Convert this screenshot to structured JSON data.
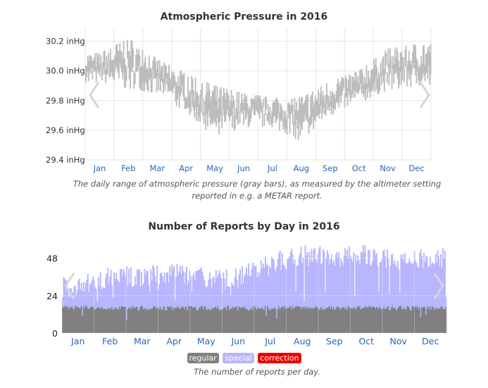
{
  "chart_data": [
    {
      "type": "bar",
      "title": "Atmospheric Pressure in 2016",
      "caption": "The daily range of atmospheric pressure (gray bars), as measured by the altimeter setting reported in e.g. a METAR report.",
      "y_unit": "inHg",
      "ylim": [
        29.4,
        30.25
      ],
      "yticks": [
        29.4,
        29.6,
        29.8,
        30.0,
        30.2
      ],
      "ytick_labels": [
        "29.4 inHg",
        "29.6 inHg",
        "29.8 inHg",
        "30.0 inHg",
        "30.2 inHg"
      ],
      "months": [
        "Jan",
        "Feb",
        "Mar",
        "Apr",
        "May",
        "Jun",
        "Jul",
        "Aug",
        "Sep",
        "Oct",
        "Nov",
        "Dec"
      ],
      "grid": true,
      "bar_color": "#bdbdbd",
      "monthly_range": [
        {
          "month": "Jan",
          "low": 29.92,
          "high": 30.12
        },
        {
          "month": "Feb",
          "low": 29.88,
          "high": 30.22
        },
        {
          "month": "Mar",
          "low": 29.85,
          "high": 30.08
        },
        {
          "month": "Apr",
          "low": 29.72,
          "high": 29.98
        },
        {
          "month": "May",
          "low": 29.55,
          "high": 29.9
        },
        {
          "month": "Jun",
          "low": 29.62,
          "high": 29.85
        },
        {
          "month": "Jul",
          "low": 29.62,
          "high": 29.82
        },
        {
          "month": "Aug",
          "low": 29.52,
          "high": 29.82
        },
        {
          "month": "Sep",
          "low": 29.7,
          "high": 29.93
        },
        {
          "month": "Oct",
          "low": 29.78,
          "high": 30.0
        },
        {
          "month": "Nov",
          "low": 29.87,
          "high": 30.15
        },
        {
          "month": "Dec",
          "low": 29.9,
          "high": 30.18
        }
      ]
    },
    {
      "type": "bar",
      "title": "Number of Reports by Day in 2016",
      "caption": "The number of reports per day.",
      "ylim": [
        0,
        60
      ],
      "yticks": [
        0,
        24,
        48
      ],
      "ytick_labels": [
        "0",
        "24",
        "48"
      ],
      "months": [
        "Jan",
        "Feb",
        "Mar",
        "Apr",
        "May",
        "Jun",
        "Jul",
        "Aug",
        "Sep",
        "Oct",
        "Nov",
        "Dec"
      ],
      "grid": true,
      "legend": "bottom-center",
      "series": [
        {
          "name": "regular",
          "color": "#808080",
          "typical_per_day": 16
        },
        {
          "name": "special",
          "color": "#b8b6ff",
          "monthly_typical_total": [
            30,
            36,
            36,
            38,
            36,
            36,
            44,
            50,
            48,
            50,
            46,
            48
          ]
        },
        {
          "name": "correction",
          "color": "#ee0000",
          "typical_per_day": 0
        }
      ]
    }
  ]
}
